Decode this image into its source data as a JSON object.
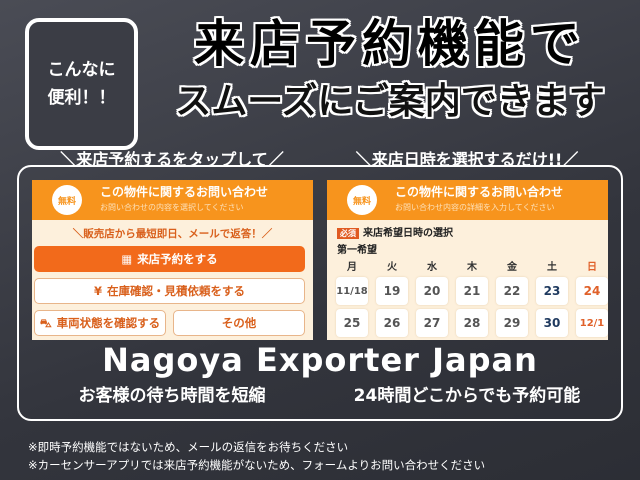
{
  "badge": {
    "line1": "こんなに",
    "line2": "便利！！"
  },
  "title": {
    "line1": "来店予約機能で",
    "line2": "スムーズにご案内できます"
  },
  "left": {
    "heading": "＼来店予約するをタップして／",
    "free": "無料",
    "header_title": "この物件に関するお問い合わせ",
    "header_sub": "お問い合わせの内容を選択してください",
    "notice": "＼販売店から最短即日、メールで返答！／",
    "btn_visit": "来店予約をする",
    "btn_stock": "在庫確認・見積依頼をする",
    "btn_car": "車両状態を確認する",
    "btn_other": "その他",
    "caption": "お客様の待ち時間を短縮"
  },
  "right": {
    "heading": "＼来店日時を選択するだけ!!／",
    "free": "無料",
    "header_title": "この物件に関するお問い合わせ",
    "header_sub": "お問い合わせ内容の詳細を入力してください",
    "required": "必須",
    "field_label": "来店希望日時の選択",
    "first_choice": "第一希望",
    "weekdays": [
      "月",
      "火",
      "水",
      "木",
      "金",
      "土",
      "日"
    ],
    "week1": [
      "11/18",
      "19",
      "20",
      "21",
      "22",
      "23",
      "24"
    ],
    "week2": [
      "25",
      "26",
      "27",
      "28",
      "29",
      "30",
      "12/1"
    ],
    "colors": {
      "saturday": "#1f3a5f",
      "sunday": "#e0612a"
    },
    "caption": "24時間どこからでも予約可能"
  },
  "watermark": "Nagoya Exporter Japan",
  "notes": [
    "※即時予約機能ではないため、メールの返信をお待ちください",
    "※カーセンサーアプリでは来店予約機能がないため、フォームよりお問い合わせください"
  ]
}
